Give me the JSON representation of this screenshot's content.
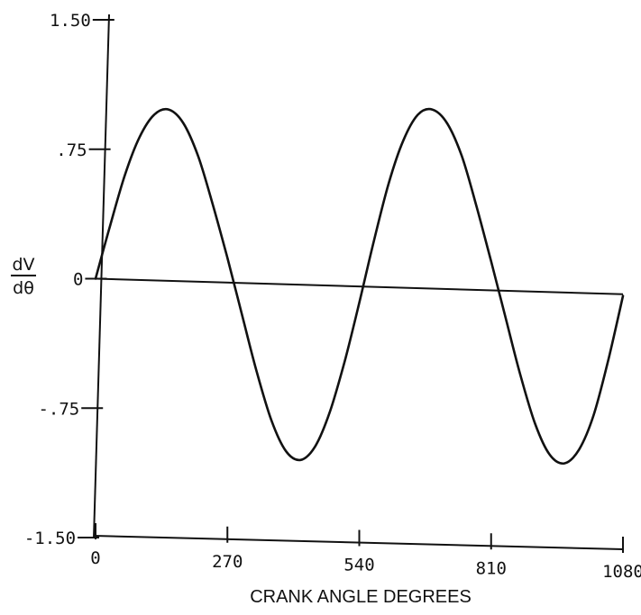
{
  "chart_data": {
    "type": "line",
    "xlabel": "CRANK ANGLE DEGREES",
    "ylabel_numerator": "dV",
    "ylabel_denominator": "dθ",
    "xlim": [
      0,
      1080
    ],
    "ylim": [
      -1.5,
      1.5
    ],
    "x_ticks": [
      {
        "value": 0,
        "label": "0"
      },
      {
        "value": 270,
        "label": "270"
      },
      {
        "value": 540,
        "label": "540"
      },
      {
        "value": 810,
        "label": "810"
      },
      {
        "value": 1080,
        "label": "1080"
      }
    ],
    "y_ticks": [
      {
        "value": 1.5,
        "label": "1.50"
      },
      {
        "value": 0.75,
        "label": ".75"
      },
      {
        "value": 0,
        "label": "0"
      },
      {
        "value": -0.75,
        "label": "-.75"
      },
      {
        "value": -1.5,
        "label": "-1.50"
      }
    ],
    "series": [
      {
        "x": [
          0,
          30,
          60,
          90,
          120,
          150,
          180,
          210,
          240,
          270,
          300,
          330,
          360,
          390,
          420,
          450,
          480,
          510,
          540,
          570,
          600,
          630,
          660,
          690,
          720,
          750,
          780,
          810,
          840,
          870,
          900,
          930,
          960,
          990,
          1020,
          1050,
          1080
        ],
        "y": [
          0,
          0.31,
          0.6,
          0.82,
          0.95,
          0.98,
          0.9,
          0.71,
          0.43,
          0.12,
          -0.21,
          -0.54,
          -0.82,
          -1.0,
          -1.05,
          -0.97,
          -0.77,
          -0.48,
          -0.14,
          0.22,
          0.55,
          0.8,
          0.95,
          0.98,
          0.9,
          0.71,
          0.42,
          0.1,
          -0.23,
          -0.56,
          -0.84,
          -1.02,
          -1.07,
          -0.99,
          -0.79,
          -0.47,
          -0.1
        ]
      }
    ],
    "reference_line": {
      "x": [
        0,
        1080
      ],
      "y": [
        0,
        -0.09
      ]
    },
    "grid": false,
    "legend": "none"
  }
}
